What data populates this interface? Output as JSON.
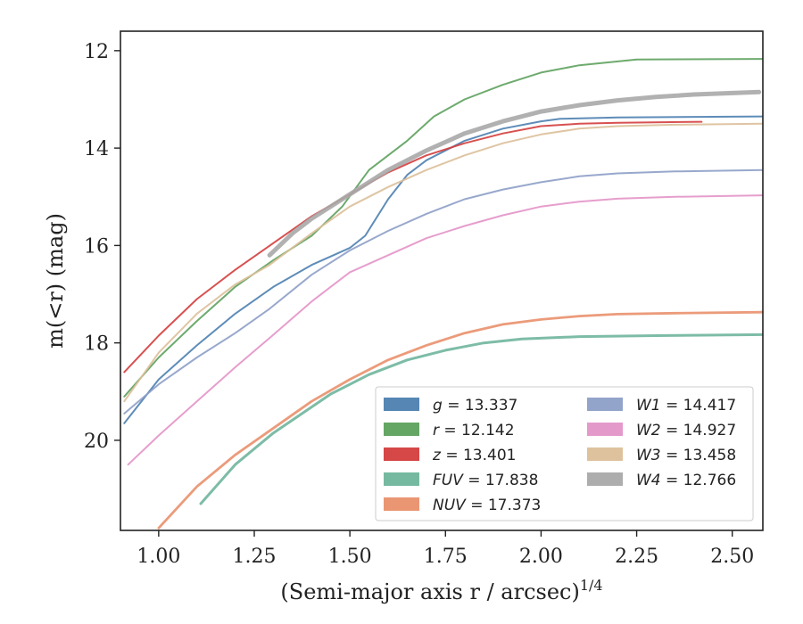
{
  "chart_data": {
    "type": "line",
    "title": "",
    "xlabel": "(Semi-major axis r / arcsec)",
    "xlabel_superscript": "1/4",
    "ylabel": "m(<r) (mag)",
    "xlim": [
      0.9,
      2.58
    ],
    "ylim": [
      21.85,
      11.6
    ],
    "y_inverted": true,
    "grid": false,
    "legend_position": "lower-right",
    "x_ticks": [
      "1.00",
      "1.25",
      "1.50",
      "1.75",
      "2.00",
      "2.25",
      "2.50"
    ],
    "y_ticks": [
      "12",
      "14",
      "16",
      "18",
      "20"
    ],
    "series": [
      {
        "name": "g = 13.337",
        "band": "g",
        "mag": "13.337",
        "color": "#4c7fb0",
        "x": [
          0.91,
          1.0,
          1.1,
          1.2,
          1.3,
          1.4,
          1.5,
          1.54,
          1.6,
          1.65,
          1.7,
          1.8,
          1.9,
          2.0,
          2.05,
          2.2,
          2.58
        ],
        "y": [
          19.65,
          18.75,
          18.05,
          17.4,
          16.85,
          16.4,
          16.05,
          15.8,
          15.05,
          14.55,
          14.25,
          13.85,
          13.6,
          13.45,
          13.4,
          13.37,
          13.35
        ]
      },
      {
        "name": "r = 12.142",
        "band": "r",
        "mag": "12.142",
        "color": "#5da15d",
        "x": [
          0.91,
          1.0,
          1.1,
          1.2,
          1.3,
          1.4,
          1.48,
          1.55,
          1.6,
          1.65,
          1.72,
          1.8,
          1.9,
          2.0,
          2.1,
          2.25,
          2.58
        ],
        "y": [
          19.1,
          18.3,
          17.55,
          16.85,
          16.3,
          15.8,
          15.2,
          14.45,
          14.15,
          13.85,
          13.35,
          13.0,
          12.7,
          12.45,
          12.3,
          12.18,
          12.17
        ]
      },
      {
        "name": "z = 13.401",
        "band": "z",
        "mag": "13.401",
        "color": "#d43d3d",
        "x": [
          0.91,
          1.0,
          1.1,
          1.2,
          1.3,
          1.4,
          1.5,
          1.6,
          1.7,
          1.8,
          1.9,
          2.0,
          2.1,
          2.2,
          2.42
        ],
        "y": [
          18.6,
          17.85,
          17.1,
          16.5,
          15.95,
          15.4,
          14.95,
          14.5,
          14.15,
          13.9,
          13.7,
          13.55,
          13.5,
          13.48,
          13.46
        ]
      },
      {
        "name": "FUV = 17.838",
        "band": "FUV",
        "mag": "17.838",
        "color": "#6fb59c",
        "x": [
          1.11,
          1.2,
          1.3,
          1.45,
          1.55,
          1.65,
          1.75,
          1.85,
          1.95,
          2.1,
          2.3,
          2.58
        ],
        "y": [
          21.3,
          20.5,
          19.85,
          19.05,
          18.65,
          18.35,
          18.15,
          18.0,
          17.92,
          17.87,
          17.85,
          17.83
        ]
      },
      {
        "name": "NUV = 17.373",
        "band": "NUV",
        "mag": "17.373",
        "color": "#e9906c",
        "x": [
          1.0,
          1.1,
          1.2,
          1.3,
          1.4,
          1.5,
          1.6,
          1.7,
          1.8,
          1.9,
          2.0,
          2.1,
          2.2,
          2.35,
          2.58
        ],
        "y": [
          21.8,
          20.95,
          20.3,
          19.75,
          19.2,
          18.75,
          18.35,
          18.05,
          17.8,
          17.62,
          17.52,
          17.45,
          17.41,
          17.39,
          17.37
        ]
      },
      {
        "name": "W1 = 14.417",
        "band": "W1",
        "mag": "14.417",
        "color": "#8d9fc7",
        "x": [
          0.91,
          1.0,
          1.1,
          1.2,
          1.29,
          1.4,
          1.5,
          1.6,
          1.7,
          1.8,
          1.9,
          2.0,
          2.1,
          2.2,
          2.35,
          2.58
        ],
        "y": [
          19.45,
          18.85,
          18.3,
          17.8,
          17.3,
          16.6,
          16.1,
          15.7,
          15.35,
          15.05,
          14.85,
          14.7,
          14.58,
          14.52,
          14.48,
          14.45
        ]
      },
      {
        "name": "W2 = 14.927",
        "band": "W2",
        "mag": "14.927",
        "color": "#e394c8",
        "x": [
          0.92,
          1.0,
          1.1,
          1.2,
          1.29,
          1.4,
          1.5,
          1.6,
          1.7,
          1.8,
          1.9,
          2.0,
          2.1,
          2.2,
          2.35,
          2.58
        ],
        "y": [
          20.5,
          19.9,
          19.2,
          18.5,
          17.9,
          17.15,
          16.55,
          16.2,
          15.85,
          15.6,
          15.38,
          15.2,
          15.1,
          15.04,
          15.0,
          14.97
        ]
      },
      {
        "name": "W3 = 13.458",
        "band": "W3",
        "mag": "13.458",
        "color": "#dcbf99",
        "x": [
          0.91,
          1.0,
          1.1,
          1.2,
          1.29,
          1.4,
          1.5,
          1.6,
          1.7,
          1.8,
          1.9,
          2.0,
          2.1,
          2.2,
          2.35,
          2.58
        ],
        "y": [
          19.2,
          18.2,
          17.4,
          16.8,
          16.4,
          15.75,
          15.2,
          14.8,
          14.45,
          14.15,
          13.9,
          13.72,
          13.6,
          13.55,
          13.52,
          13.5
        ]
      },
      {
        "name": "W4 = 12.766",
        "band": "W4",
        "mag": "12.766",
        "color": "#a9a9a9",
        "x": [
          1.29,
          1.35,
          1.4,
          1.5,
          1.6,
          1.7,
          1.8,
          1.9,
          2.0,
          2.1,
          2.2,
          2.3,
          2.4,
          2.5,
          2.57
        ],
        "y": [
          16.2,
          15.75,
          15.45,
          14.95,
          14.45,
          14.05,
          13.7,
          13.45,
          13.25,
          13.12,
          13.02,
          12.95,
          12.9,
          12.87,
          12.85
        ]
      }
    ]
  }
}
